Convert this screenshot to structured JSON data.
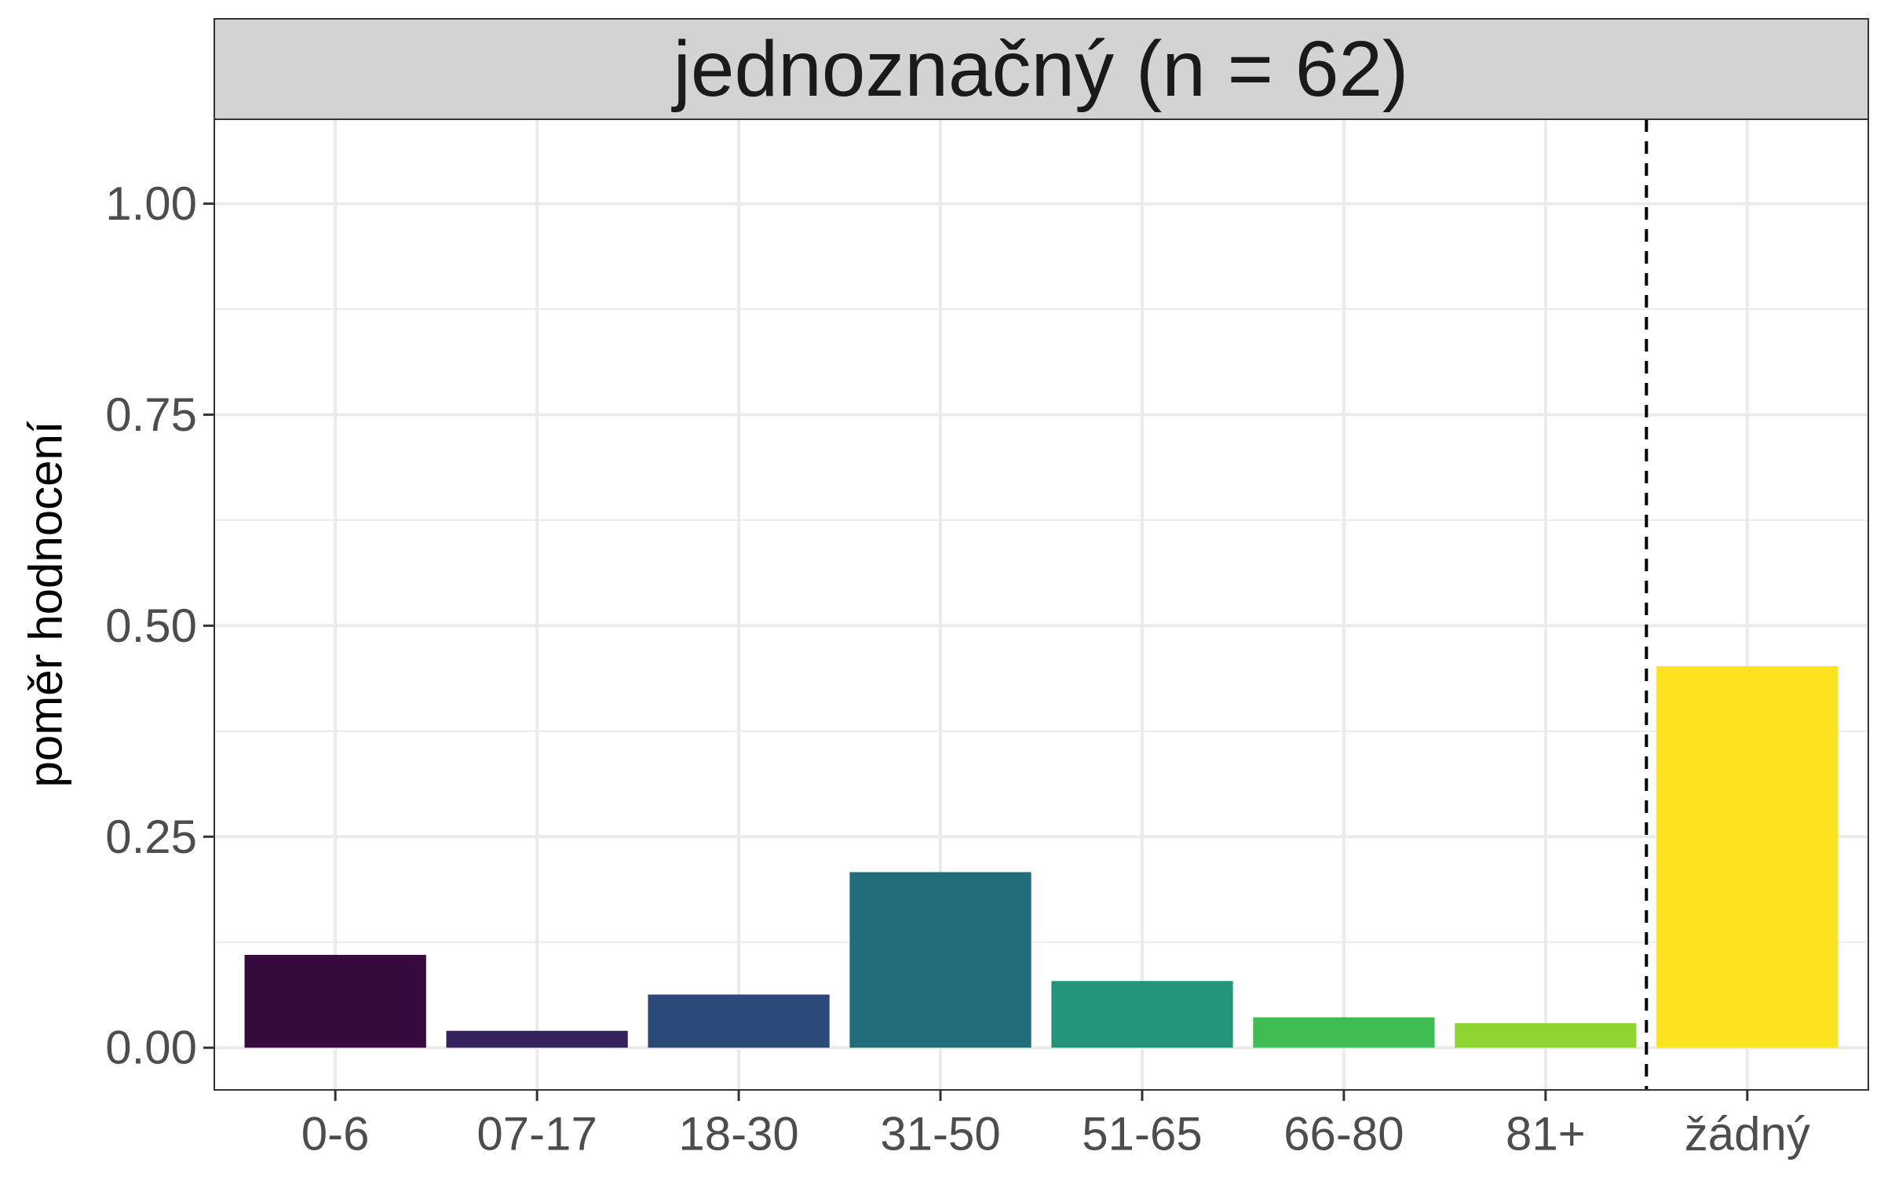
{
  "chart_data": {
    "type": "bar",
    "facet_title": "jednoznačný (n = 62)",
    "ylabel": "poměr hodnocení",
    "xlabel": "",
    "categories": [
      "0-6",
      "07-17",
      "18-30",
      "31-50",
      "51-65",
      "66-80",
      "81+",
      "žádný"
    ],
    "values": [
      0.11,
      0.02,
      0.063,
      0.208,
      0.079,
      0.036,
      0.029,
      0.452
    ],
    "colors": [
      "#360a3d",
      "#35215e",
      "#2b4a79",
      "#216d79",
      "#21947a",
      "#3fbc52",
      "#8fd631",
      "#fbe320"
    ],
    "ylim": [
      -0.05,
      1.1
    ],
    "y_ticks": [
      "0.00",
      "0.25",
      "0.50",
      "0.75",
      "1.00"
    ],
    "y_tick_values": [
      0,
      0.25,
      0.5,
      0.75,
      1.0
    ],
    "reference_line": {
      "style": "dashed",
      "between_categories": [
        "81+",
        "žádný"
      ],
      "color": "#000000"
    },
    "grid": true,
    "legend": "none"
  }
}
